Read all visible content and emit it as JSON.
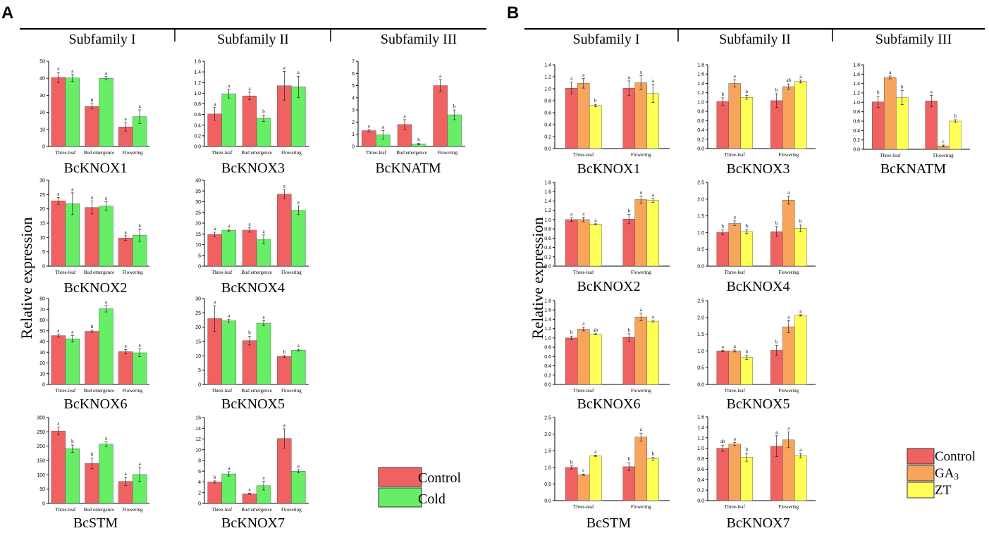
{
  "panels": [
    {
      "letter": "A",
      "subfamilies": [
        "Subfamily I",
        "Subfamily II",
        "Subfamily III"
      ],
      "ylabel": "Relative expression",
      "legend": [
        {
          "name": "Control",
          "color": "#f06262"
        },
        {
          "name": "Cold",
          "color": "#66ee66"
        }
      ]
    },
    {
      "letter": "B",
      "subfamilies": [
        "Subfamily I",
        "Subfamily II",
        "Subfamily III"
      ],
      "ylabel": "Relative expression",
      "legend": [
        {
          "name": "Control",
          "color": "#f06262"
        },
        {
          "name": "GA",
          "sub": "3",
          "color": "#f7a45c"
        },
        {
          "name": "ZT",
          "color": "#ffff55"
        }
      ]
    }
  ],
  "chart_data": [
    {
      "type": "bar",
      "panel": "A",
      "title": "BcKNOX1",
      "ylim": [
        0,
        50
      ],
      "yticks": [
        0,
        10,
        20,
        30,
        40,
        50
      ],
      "categories": [
        "Three-leaf",
        "Bud emergence",
        "Flowering"
      ],
      "series": [
        {
          "name": "Control",
          "values": [
            40.5,
            23.5,
            11.5
          ],
          "errors": [
            3,
            1.5,
            2.5
          ],
          "letters": [
            "a",
            "b",
            "a"
          ]
        },
        {
          "name": "Cold",
          "values": [
            40.2,
            40,
            17.5
          ],
          "errors": [
            2,
            1,
            4
          ],
          "letters": [
            "a",
            "a",
            "a"
          ]
        }
      ]
    },
    {
      "type": "bar",
      "panel": "A",
      "title": "BcKNOX3",
      "ylim": [
        0,
        1.6
      ],
      "yticks": [
        0,
        0.2,
        0.4,
        0.6,
        0.8,
        1.0,
        1.2,
        1.4,
        1.6
      ],
      "categories": [
        "Three-leaf",
        "Bud emergence",
        "Flowering"
      ],
      "series": [
        {
          "name": "Control",
          "values": [
            0.61,
            0.95,
            1.14
          ],
          "errors": [
            0.12,
            0.07,
            0.27
          ],
          "letters": [
            "a",
            "a",
            "a"
          ]
        },
        {
          "name": "Cold",
          "values": [
            0.99,
            0.53,
            1.12
          ],
          "errors": [
            0.08,
            0.06,
            0.2
          ],
          "letters": [
            "a",
            "b",
            "a"
          ]
        }
      ]
    },
    {
      "type": "bar",
      "panel": "A",
      "title": "BcKNATM",
      "ylim": [
        0,
        7
      ],
      "yticks": [
        0,
        1,
        2,
        3,
        4,
        5,
        6,
        7
      ],
      "categories": [
        "Three-leaf",
        "Bud emergence",
        "Flowering"
      ],
      "series": [
        {
          "name": "Control",
          "values": [
            1.3,
            1.8,
            5.0
          ],
          "errors": [
            0.1,
            0.4,
            0.5
          ],
          "letters": [
            "a",
            "a",
            "a"
          ]
        },
        {
          "name": "Cold",
          "values": [
            0.95,
            0.2,
            2.6
          ],
          "errors": [
            0.35,
            0.05,
            0.4
          ],
          "letters": [
            "a",
            "b",
            "b"
          ]
        }
      ]
    },
    {
      "type": "bar",
      "panel": "A",
      "title": "BcKNOX2",
      "ylim": [
        0,
        30
      ],
      "yticks": [
        0,
        5,
        10,
        15,
        20,
        25,
        30
      ],
      "categories": [
        "Three-leaf",
        "Bud emergence",
        "Flowering"
      ],
      "series": [
        {
          "name": "Control",
          "values": [
            22.8,
            20.5,
            9.8
          ],
          "errors": [
            1.2,
            2.3,
            0.8
          ],
          "letters": [
            "a",
            "a",
            "a"
          ]
        },
        {
          "name": "Cold",
          "values": [
            21.8,
            21.0,
            10.8
          ],
          "errors": [
            3.8,
            1.5,
            2.2
          ],
          "letters": [
            "a",
            "a",
            "a"
          ]
        }
      ]
    },
    {
      "type": "bar",
      "panel": "A",
      "title": "BcKNOX4",
      "ylim": [
        0,
        40
      ],
      "yticks": [
        0,
        5,
        10,
        15,
        20,
        25,
        30,
        35,
        40
      ],
      "categories": [
        "Three-leaf",
        "Bud emergence",
        "Flowering"
      ],
      "series": [
        {
          "name": "Control",
          "values": [
            14.8,
            16.8,
            33.5
          ],
          "errors": [
            1,
            1,
            2
          ],
          "letters": [
            "a",
            "a",
            "a"
          ]
        },
        {
          "name": "Cold",
          "values": [
            16.6,
            12.5,
            26
          ],
          "errors": [
            0.5,
            2,
            2
          ],
          "letters": [
            "a",
            "a",
            "a"
          ]
        }
      ]
    },
    {
      "type": "bar",
      "panel": "A",
      "title": "BcKNOX6",
      "ylim": [
        0,
        80
      ],
      "yticks": [
        0,
        10,
        20,
        30,
        40,
        50,
        60,
        70,
        80
      ],
      "categories": [
        "Three-leaf",
        "Bud emergence",
        "Flowering"
      ],
      "series": [
        {
          "name": "Control",
          "values": [
            45.5,
            49.5,
            30.5
          ],
          "errors": [
            1.5,
            1,
            2
          ],
          "letters": [
            "a",
            "b",
            "a"
          ]
        },
        {
          "name": "Cold",
          "values": [
            42.5,
            70.5,
            29.5
          ],
          "errors": [
            3,
            3,
            3.5
          ],
          "letters": [
            "a",
            "a",
            "a"
          ]
        }
      ]
    },
    {
      "type": "bar",
      "panel": "A",
      "title": "BcKNOX5",
      "ylim": [
        0,
        30
      ],
      "yticks": [
        0,
        5,
        10,
        15,
        20,
        25,
        30
      ],
      "categories": [
        "Three-leaf",
        "Bud emergence",
        "Flowering"
      ],
      "series": [
        {
          "name": "Control",
          "values": [
            23,
            15.3,
            9.8
          ],
          "errors": [
            4.5,
            1.5,
            0.3
          ],
          "letters": [
            "a",
            "b",
            "b"
          ]
        },
        {
          "name": "Cold",
          "values": [
            22.2,
            21.4,
            12
          ],
          "errors": [
            0.5,
            0.8,
            0.3
          ],
          "letters": [
            "a",
            "a",
            "a"
          ]
        }
      ]
    },
    {
      "type": "bar",
      "panel": "A",
      "title": "BcSTM",
      "ylim": [
        0,
        300
      ],
      "yticks": [
        0,
        50,
        100,
        150,
        200,
        250,
        300
      ],
      "categories": [
        "Three-leaf",
        "Bud emergence",
        "Flowering"
      ],
      "series": [
        {
          "name": "Control",
          "values": [
            253,
            140,
            77
          ],
          "errors": [
            14,
            18,
            14
          ],
          "letters": [
            "a",
            "b",
            "a"
          ]
        },
        {
          "name": "Cold",
          "values": [
            191,
            207,
            101
          ],
          "errors": [
            13,
            8,
            24
          ],
          "letters": [
            "b",
            "a",
            "a"
          ]
        }
      ]
    },
    {
      "type": "bar",
      "panel": "A",
      "title": "BcKNOX7",
      "ylim": [
        0,
        16
      ],
      "yticks": [
        0,
        2,
        4,
        6,
        8,
        10,
        12,
        14,
        16
      ],
      "categories": [
        "Three-leaf",
        "Bud emergence",
        "Flowering"
      ],
      "series": [
        {
          "name": "Control",
          "values": [
            4.0,
            1.8,
            12.1
          ],
          "errors": [
            0.2,
            0.1,
            1.8
          ],
          "letters": [
            "b",
            "a",
            "a"
          ]
        },
        {
          "name": "Cold",
          "values": [
            5.5,
            3.3,
            6.0
          ],
          "errors": [
            0.4,
            0.8,
            0.3
          ],
          "letters": [
            "a",
            "a",
            "a"
          ]
        }
      ]
    },
    {
      "type": "bar",
      "panel": "B",
      "title": "BcKNOX1",
      "ylim": [
        0,
        1.4
      ],
      "yticks": [
        0,
        0.2,
        0.4,
        0.6,
        0.8,
        1.0,
        1.2,
        1.4
      ],
      "categories": [
        "Three-leaf",
        "Flowering"
      ],
      "series": [
        {
          "name": "Control",
          "values": [
            1.01,
            1.01
          ],
          "errors": [
            0.1,
            0.12
          ],
          "letters": [
            "a",
            "a"
          ]
        },
        {
          "name": "GA3",
          "values": [
            1.09,
            1.1
          ],
          "errors": [
            0.08,
            0.12
          ],
          "letters": [
            "a",
            "a"
          ]
        },
        {
          "name": "ZT",
          "values": [
            0.72,
            0.92
          ],
          "errors": [
            0.02,
            0.15
          ],
          "letters": [
            "b",
            "a"
          ]
        }
      ]
    },
    {
      "type": "bar",
      "panel": "B",
      "title": "BcKNOX3",
      "ylim": [
        0,
        1.8
      ],
      "yticks": [
        0,
        0.2,
        0.4,
        0.6,
        0.8,
        1.0,
        1.2,
        1.4,
        1.6,
        1.8
      ],
      "categories": [
        "Three-leaf",
        "Flowering"
      ],
      "series": [
        {
          "name": "Control",
          "values": [
            1.01,
            1.03
          ],
          "errors": [
            0.08,
            0.15
          ],
          "letters": [
            "b",
            "b"
          ]
        },
        {
          "name": "GA3",
          "values": [
            1.4,
            1.33
          ],
          "errors": [
            0.08,
            0.06
          ],
          "letters": [
            "a",
            "ab"
          ]
        },
        {
          "name": "ZT",
          "values": [
            1.1,
            1.44
          ],
          "errors": [
            0.04,
            0.03
          ],
          "letters": [
            "b",
            "a"
          ]
        }
      ]
    },
    {
      "type": "bar",
      "panel": "B",
      "title": "BcKNATM",
      "ylim": [
        0,
        1.8
      ],
      "yticks": [
        0,
        0.2,
        0.4,
        0.6,
        0.8,
        1.0,
        1.2,
        1.4,
        1.6,
        1.8
      ],
      "categories": [
        "Three-leaf",
        "Flowering"
      ],
      "series": [
        {
          "name": "Control",
          "values": [
            1.01,
            1.03
          ],
          "errors": [
            0.12,
            0.12
          ],
          "letters": [
            "b",
            "a"
          ]
        },
        {
          "name": "GA3",
          "values": [
            1.53,
            0.07
          ],
          "errors": [
            0.03,
            0.02
          ],
          "letters": [
            "a",
            "c"
          ]
        },
        {
          "name": "ZT",
          "values": [
            1.1,
            0.6
          ],
          "errors": [
            0.15,
            0.03
          ],
          "letters": [
            "b",
            "b"
          ]
        }
      ]
    },
    {
      "type": "bar",
      "panel": "B",
      "title": "BcKNOX2",
      "ylim": [
        0,
        1.8
      ],
      "yticks": [
        0,
        0.2,
        0.4,
        0.6,
        0.8,
        1.0,
        1.2,
        1.4,
        1.6,
        1.8
      ],
      "categories": [
        "Three-leaf",
        "Flowering"
      ],
      "series": [
        {
          "name": "Control",
          "values": [
            1.0,
            1.01
          ],
          "errors": [
            0.04,
            0.1
          ],
          "letters": [
            "a",
            "b"
          ]
        },
        {
          "name": "GA3",
          "values": [
            1.0,
            1.43
          ],
          "errors": [
            0.05,
            0.08
          ],
          "letters": [
            "a",
            "a"
          ]
        },
        {
          "name": "ZT",
          "values": [
            0.9,
            1.41
          ],
          "errors": [
            0.01,
            0.04
          ],
          "letters": [
            "a",
            "a"
          ]
        }
      ]
    },
    {
      "type": "bar",
      "panel": "B",
      "title": "BcKNOX4",
      "ylim": [
        0,
        2.5
      ],
      "yticks": [
        0,
        0.5,
        1.0,
        1.5,
        2.0,
        2.5
      ],
      "categories": [
        "Three-leaf",
        "Flowering"
      ],
      "series": [
        {
          "name": "Control",
          "values": [
            1.01,
            1.03
          ],
          "errors": [
            0.07,
            0.15
          ],
          "letters": [
            "b",
            "b"
          ]
        },
        {
          "name": "GA3",
          "values": [
            1.28,
            1.97
          ],
          "errors": [
            0.07,
            0.12
          ],
          "letters": [
            "a",
            "a"
          ]
        },
        {
          "name": "ZT",
          "values": [
            1.03,
            1.13
          ],
          "errors": [
            0.06,
            0.1
          ],
          "letters": [
            "b",
            "b"
          ]
        }
      ]
    },
    {
      "type": "bar",
      "panel": "B",
      "title": "BcKNOX6",
      "ylim": [
        0,
        1.8
      ],
      "yticks": [
        0,
        0.2,
        0.4,
        0.6,
        0.8,
        1.0,
        1.2,
        1.4,
        1.6,
        1.8
      ],
      "categories": [
        "Three-leaf",
        "Flowering"
      ],
      "series": [
        {
          "name": "Control",
          "values": [
            1.0,
            1.01
          ],
          "errors": [
            0.04,
            0.08
          ],
          "letters": [
            "b",
            "b"
          ]
        },
        {
          "name": "GA3",
          "values": [
            1.19,
            1.45
          ],
          "errors": [
            0.04,
            0.08
          ],
          "letters": [
            "a",
            "a"
          ]
        },
        {
          "name": "ZT",
          "values": [
            1.08,
            1.36
          ],
          "errors": [
            0.01,
            0.02
          ],
          "letters": [
            "ab",
            "a"
          ]
        }
      ]
    },
    {
      "type": "bar",
      "panel": "B",
      "title": "BcKNOX5",
      "ylim": [
        0,
        2.5
      ],
      "yticks": [
        0,
        0.5,
        1.0,
        1.5,
        2.0,
        2.5
      ],
      "categories": [
        "Three-leaf",
        "Flowering"
      ],
      "series": [
        {
          "name": "Control",
          "values": [
            1.0,
            1.02
          ],
          "errors": [
            0.02,
            0.15
          ],
          "letters": [
            "a",
            "b"
          ]
        },
        {
          "name": "GA3",
          "values": [
            1.0,
            1.72
          ],
          "errors": [
            0.03,
            0.18
          ],
          "letters": [
            "a",
            "a"
          ]
        },
        {
          "name": "ZT",
          "values": [
            0.81,
            2.06
          ],
          "errors": [
            0.06,
            0.02
          ],
          "letters": [
            "b",
            "a"
          ]
        }
      ]
    },
    {
      "type": "bar",
      "panel": "B",
      "title": "BcSTM",
      "ylim": [
        0,
        2.5
      ],
      "yticks": [
        0,
        0.5,
        1.0,
        1.5,
        2.0,
        2.5
      ],
      "categories": [
        "Three-leaf",
        "Flowering"
      ],
      "series": [
        {
          "name": "Control",
          "values": [
            1.0,
            1.02
          ],
          "errors": [
            0.05,
            0.12
          ],
          "letters": [
            "b",
            "b"
          ]
        },
        {
          "name": "GA3",
          "values": [
            0.78,
            1.91
          ],
          "errors": [
            0.02,
            0.12
          ],
          "letters": [
            "c",
            "a"
          ]
        },
        {
          "name": "ZT",
          "values": [
            1.35,
            1.26
          ],
          "errors": [
            0.02,
            0.04
          ],
          "letters": [
            "a",
            "b"
          ]
        }
      ]
    },
    {
      "type": "bar",
      "panel": "B",
      "title": "BcKNOX7",
      "ylim": [
        0,
        1.6
      ],
      "yticks": [
        0,
        0.2,
        0.4,
        0.6,
        0.8,
        1.0,
        1.2,
        1.4,
        1.6
      ],
      "categories": [
        "Three-leaf",
        "Flowering"
      ],
      "series": [
        {
          "name": "Control",
          "values": [
            1.0,
            1.04
          ],
          "errors": [
            0.06,
            0.2
          ],
          "letters": [
            "ab",
            "a"
          ]
        },
        {
          "name": "GA3",
          "values": [
            1.08,
            1.16
          ],
          "errors": [
            0.03,
            0.15
          ],
          "letters": [
            "a",
            "a"
          ]
        },
        {
          "name": "ZT",
          "values": [
            0.83,
            0.86
          ],
          "errors": [
            0.08,
            0.04
          ],
          "letters": [
            "b",
            "a"
          ]
        }
      ]
    }
  ]
}
